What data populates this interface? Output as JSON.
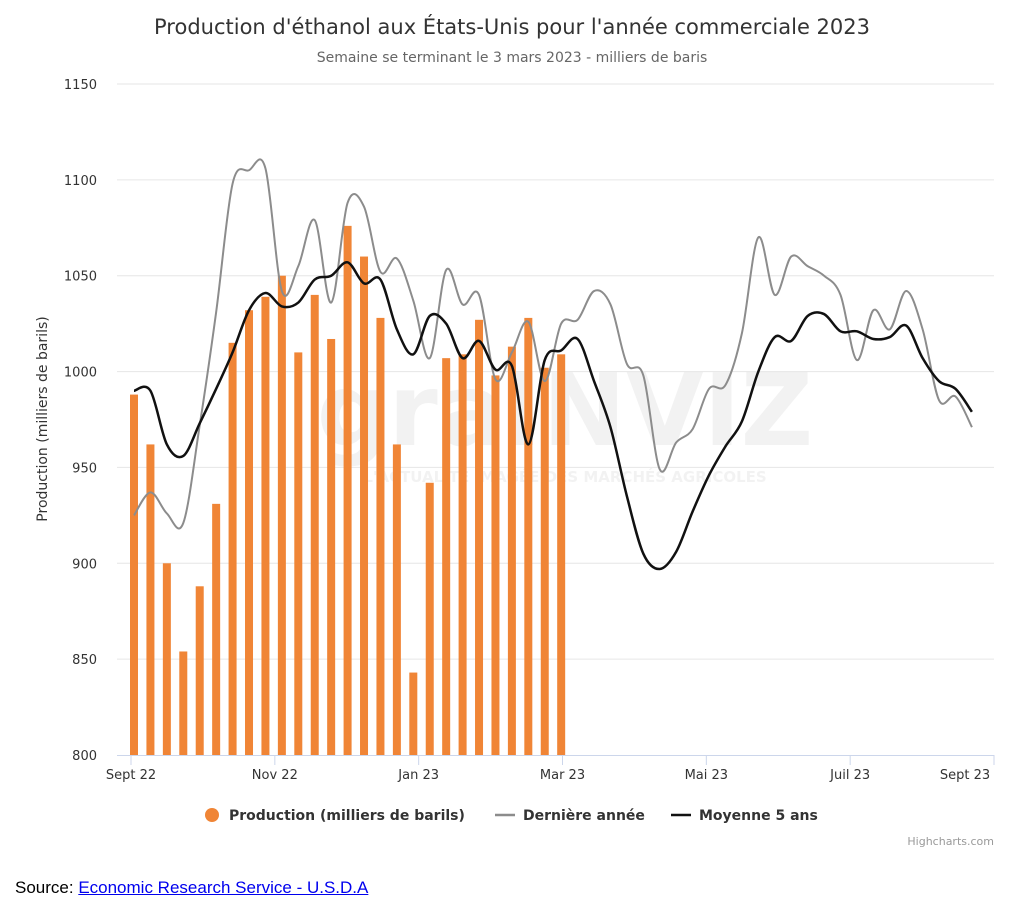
{
  "chart_data": {
    "type": "bar",
    "title": "Production d'éthanol aux États-Unis pour l'année commerciale 2023",
    "subtitle": "Semaine se terminant le 3 mars 2023 - milliers de baris",
    "ylabel": "Production (milliers de barils)",
    "ylim": [
      800,
      1150
    ],
    "yticks": [
      800,
      850,
      900,
      950,
      1000,
      1050,
      1100,
      1150
    ],
    "xticks": [
      "Sept 22",
      "Nov 22",
      "Jan 23",
      "Mar 23",
      "Mai 23",
      "Juil 23",
      "Sept 23"
    ],
    "grid": true,
    "legend_position": "bottom",
    "series": [
      {
        "name": "Production (milliers de barils)",
        "type": "column",
        "color": "#f08536",
        "values": [
          988,
          962,
          900,
          854,
          888,
          931,
          1015,
          1032,
          1039,
          1050,
          1010,
          1040,
          1017,
          1076,
          1060,
          1028,
          962,
          843,
          942,
          1007,
          1009,
          1027,
          998,
          1013,
          1028,
          1002,
          1009
        ]
      },
      {
        "name": "Dernière année",
        "type": "line",
        "color": "#8c8c8c",
        "values": [
          925,
          937,
          926,
          921,
          972,
          1031,
          1098,
          1105,
          1106,
          1042,
          1055,
          1079,
          1036,
          1088,
          1086,
          1052,
          1059,
          1037,
          1007,
          1053,
          1035,
          1040,
          996,
          1010,
          1026,
          995,
          1025,
          1027,
          1042,
          1035,
          1004,
          998,
          949,
          963,
          970,
          991,
          993,
          1020,
          1070,
          1040,
          1060,
          1055,
          1050,
          1040,
          1006,
          1032,
          1022,
          1042,
          1022,
          985,
          987,
          971
        ]
      },
      {
        "name": "Moyenne 5 ans",
        "type": "line",
        "color": "#111111",
        "values": [
          990,
          990,
          962,
          956,
          973,
          991,
          1010,
          1032,
          1041,
          1034,
          1036,
          1048,
          1050,
          1057,
          1046,
          1048,
          1022,
          1009,
          1029,
          1025,
          1007,
          1016,
          1001,
          1003,
          962,
          1006,
          1011,
          1017,
          995,
          971,
          935,
          905,
          897,
          906,
          927,
          946,
          961,
          974,
          1000,
          1018,
          1016,
          1029,
          1030,
          1021,
          1021,
          1017,
          1018,
          1024,
          1007,
          995,
          991,
          979
        ]
      }
    ]
  },
  "credits": "Highcharts.com",
  "watermark": {
    "brand": "graINVIZ",
    "tagline": "L'ACTUALITÉ IMAGÉE DES MARCHÉS AGRICOLES"
  },
  "source": {
    "label": "Source: ",
    "link_text": "Economic Research Service - U.S.D.A"
  }
}
